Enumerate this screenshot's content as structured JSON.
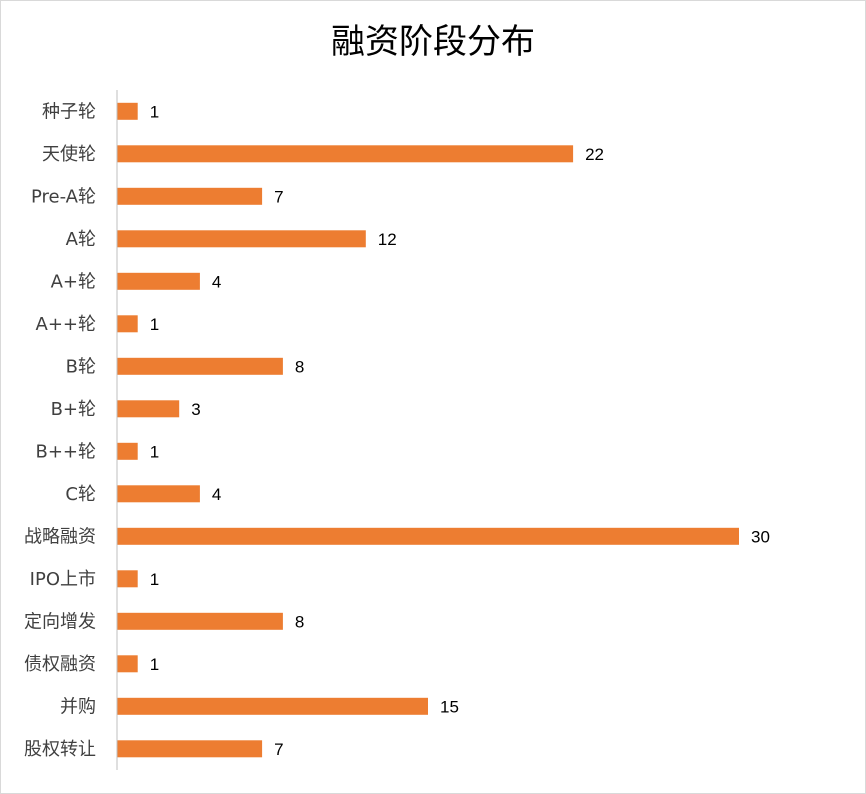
{
  "chart_data": {
    "type": "bar",
    "orientation": "horizontal",
    "title": "融资阶段分布",
    "categories": [
      "种子轮",
      "天使轮",
      "Pre-A轮",
      "A轮",
      "A+轮",
      "A++轮",
      "B轮",
      "B+轮",
      "B++轮",
      "C轮",
      "战略融资",
      "IPO上市",
      "定向增发",
      "债权融资",
      "并购",
      "股权转让"
    ],
    "values": [
      1,
      22,
      7,
      12,
      4,
      1,
      8,
      3,
      1,
      4,
      30,
      1,
      8,
      1,
      15,
      7
    ],
    "xlim": [
      0,
      30
    ],
    "grid": false,
    "data_labels": true,
    "bar_color": "#ed7d31"
  }
}
